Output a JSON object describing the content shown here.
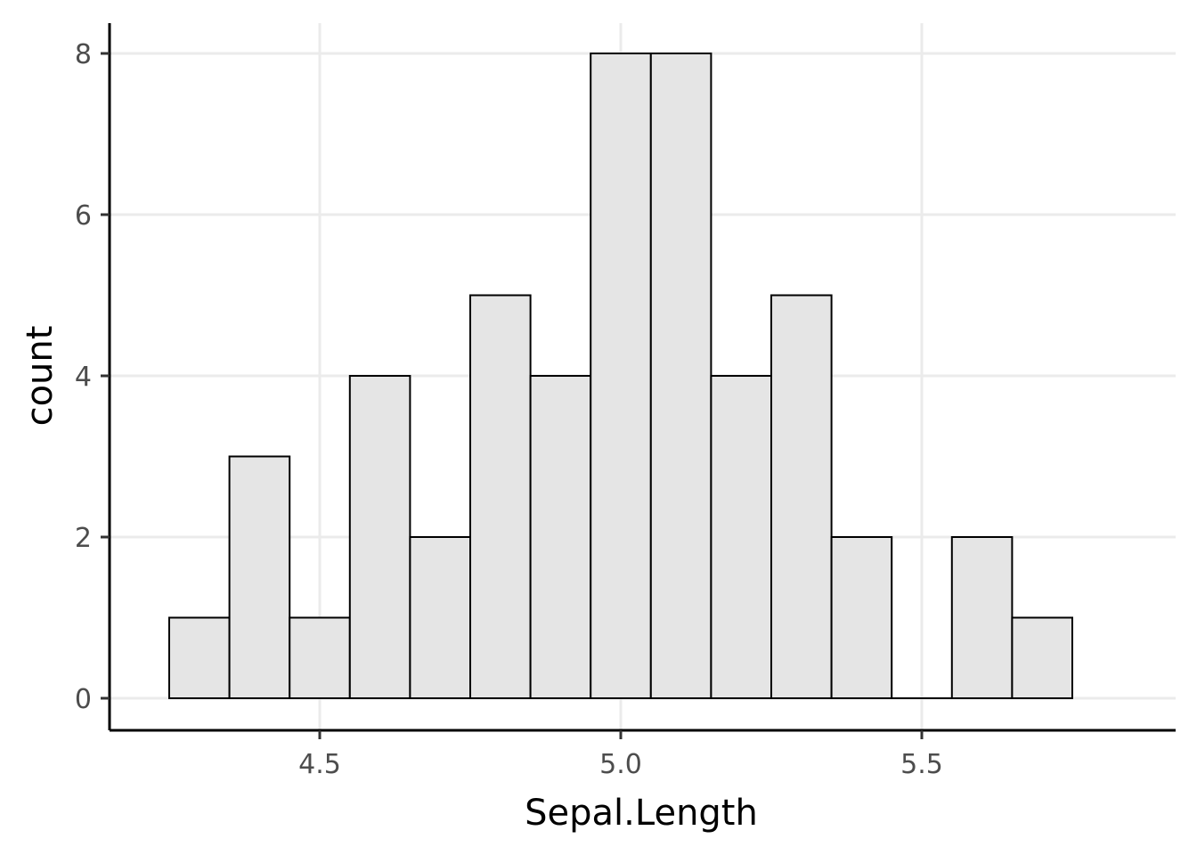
{
  "chart_data": {
    "type": "bar",
    "subtype": "histogram",
    "title": "",
    "xlabel": "Sepal.Length",
    "ylabel": "count",
    "bin_width": 0.1,
    "bins": [
      {
        "x0": 4.25,
        "x1": 4.35,
        "count": 1
      },
      {
        "x0": 4.35,
        "x1": 4.45,
        "count": 3
      },
      {
        "x0": 4.45,
        "x1": 4.55,
        "count": 1
      },
      {
        "x0": 4.55,
        "x1": 4.65,
        "count": 4
      },
      {
        "x0": 4.65,
        "x1": 4.75,
        "count": 2
      },
      {
        "x0": 4.75,
        "x1": 4.85,
        "count": 5
      },
      {
        "x0": 4.85,
        "x1": 4.95,
        "count": 4
      },
      {
        "x0": 4.95,
        "x1": 5.05,
        "count": 8
      },
      {
        "x0": 5.05,
        "x1": 5.15,
        "count": 8
      },
      {
        "x0": 5.15,
        "x1": 5.25,
        "count": 4
      },
      {
        "x0": 5.25,
        "x1": 5.35,
        "count": 5
      },
      {
        "x0": 5.35,
        "x1": 5.45,
        "count": 2
      },
      {
        "x0": 5.45,
        "x1": 5.55,
        "count": 0
      },
      {
        "x0": 5.55,
        "x1": 5.65,
        "count": 2
      },
      {
        "x0": 5.65,
        "x1": 5.75,
        "count": 1
      }
    ],
    "xlim": [
      4.2,
      5.8
    ],
    "ylim": [
      -0.4,
      8.4
    ],
    "x_ticks": [
      {
        "value": 4.5,
        "label": "4.5"
      },
      {
        "value": 5.0,
        "label": "5.0"
      },
      {
        "value": 5.5,
        "label": "5.5"
      }
    ],
    "y_ticks": [
      {
        "value": 0,
        "label": "0"
      },
      {
        "value": 2,
        "label": "2"
      },
      {
        "value": 4,
        "label": "4"
      },
      {
        "value": 6,
        "label": "6"
      },
      {
        "value": 8,
        "label": "8"
      }
    ],
    "grid": true,
    "legend": "none",
    "colors": {
      "bar_fill": "#e5e5e5",
      "bar_stroke": "#000000",
      "grid": "#ebebeb",
      "axis": "#000000",
      "tick_label": "#4d4d4d"
    }
  }
}
